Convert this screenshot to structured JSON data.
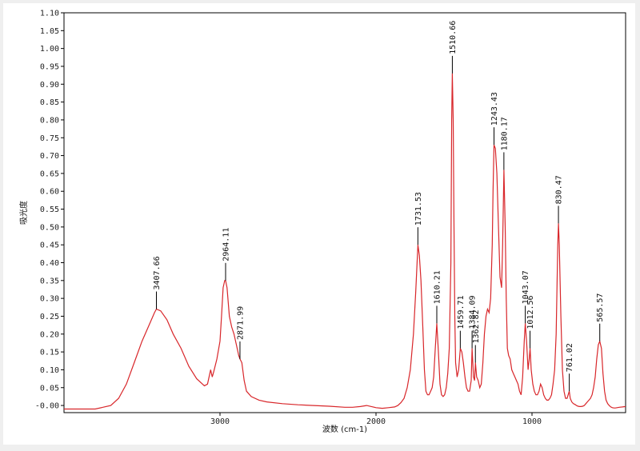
{
  "colors": {
    "spectrum": "#d8262a",
    "axis": "#000000",
    "marker": "#000000",
    "background": "#ffffff"
  },
  "chart_data": {
    "type": "line",
    "xlabel": "波数 (cm-1)",
    "ylabel": "吸光度",
    "xlim": [
      4000,
      400
    ],
    "x_reversed": true,
    "ylim": [
      -0.02,
      1.1
    ],
    "grid": false,
    "y_ticks": [
      "-0.00",
      "0.05",
      "0.10",
      "0.15",
      "0.20",
      "0.25",
      "0.30",
      "0.35",
      "0.40",
      "0.45",
      "0.50",
      "0.55",
      "0.60",
      "0.65",
      "0.70",
      "0.75",
      "0.80",
      "0.85",
      "0.90",
      "0.95",
      "1.00",
      "1.05",
      "1.10"
    ],
    "x_ticks": [
      "3000",
      "2000",
      "1000"
    ],
    "peaks": [
      {
        "label": "3407.66",
        "x": 3407.66,
        "y": 0.27
      },
      {
        "label": "2964.11",
        "x": 2964.11,
        "y": 0.35
      },
      {
        "label": "2871.99",
        "x": 2871.99,
        "y": 0.13
      },
      {
        "label": "1731.53",
        "x": 1731.53,
        "y": 0.45
      },
      {
        "label": "1610.21",
        "x": 1610.21,
        "y": 0.23
      },
      {
        "label": "1510.66",
        "x": 1510.66,
        "y": 0.93
      },
      {
        "label": "1459.71",
        "x": 1459.71,
        "y": 0.16
      },
      {
        "label": "1384.09",
        "x": 1384.09,
        "y": 0.16
      },
      {
        "label": "1362.82",
        "x": 1362.82,
        "y": 0.12
      },
      {
        "label": "1243.43",
        "x": 1243.43,
        "y": 0.73
      },
      {
        "label": "1180.17",
        "x": 1180.17,
        "y": 0.66
      },
      {
        "label": "1043.07",
        "x": 1043.07,
        "y": 0.23
      },
      {
        "label": "1012.56",
        "x": 1012.56,
        "y": 0.16
      },
      {
        "label": "830.47",
        "x": 830.47,
        "y": 0.51
      },
      {
        "label": "761.02",
        "x": 761.02,
        "y": 0.04
      },
      {
        "label": "565.57",
        "x": 565.57,
        "y": 0.18
      }
    ],
    "series": [
      {
        "x": [
          4000,
          3800,
          3700,
          3650,
          3600,
          3550,
          3500,
          3450,
          3420,
          3407.66,
          3380,
          3340,
          3300,
          3250,
          3200,
          3150,
          3100,
          3080,
          3060,
          3050,
          3040,
          3020,
          3000,
          2990,
          2980,
          2970,
          2964.11,
          2955,
          2940,
          2925,
          2910,
          2895,
          2880,
          2871.99,
          2860,
          2845,
          2830,
          2800,
          2750,
          2700,
          2600,
          2500,
          2400,
          2300,
          2200,
          2150,
          2100,
          2060,
          2030,
          2000,
          1960,
          1920,
          1880,
          1860,
          1840,
          1820,
          1800,
          1780,
          1760,
          1745,
          1731.53,
          1722,
          1712,
          1700,
          1690,
          1680,
          1670,
          1660,
          1650,
          1640,
          1630,
          1620,
          1610.21,
          1600,
          1590,
          1580,
          1570,
          1560,
          1550,
          1540,
          1530,
          1520,
          1515,
          1510.66,
          1505,
          1500,
          1495,
          1490,
          1480,
          1470,
          1459.71,
          1450,
          1440,
          1430,
          1420,
          1410,
          1400,
          1390,
          1384.09,
          1375,
          1368,
          1362.82,
          1355,
          1345,
          1335,
          1325,
          1315,
          1305,
          1295,
          1285,
          1275,
          1265,
          1255,
          1250,
          1243.43,
          1235,
          1225,
          1215,
          1205,
          1195,
          1188,
          1180.17,
          1172,
          1165,
          1158,
          1150,
          1140,
          1130,
          1120,
          1110,
          1100,
          1090,
          1080,
          1070,
          1060,
          1050,
          1043.07,
          1035,
          1025,
          1018,
          1012.56,
          1005,
          995,
          985,
          975,
          965,
          955,
          945,
          935,
          925,
          915,
          905,
          895,
          885,
          875,
          865,
          855,
          845,
          835,
          830.47,
          825,
          815,
          805,
          795,
          785,
          775,
          768,
          761.02,
          755,
          745,
          735,
          725,
          715,
          705,
          695,
          685,
          675,
          665,
          655,
          645,
          635,
          625,
          615,
          605,
          595,
          585,
          575,
          565.57,
          555,
          545,
          535,
          525,
          515,
          505,
          495,
          485,
          475,
          465,
          455,
          440,
          420,
          400
        ],
        "y": [
          -0.01,
          -0.01,
          0.0,
          0.02,
          0.06,
          0.12,
          0.18,
          0.23,
          0.26,
          0.27,
          0.265,
          0.24,
          0.2,
          0.16,
          0.11,
          0.075,
          0.055,
          0.06,
          0.1,
          0.08,
          0.095,
          0.13,
          0.18,
          0.25,
          0.33,
          0.35,
          0.35,
          0.33,
          0.25,
          0.22,
          0.2,
          0.17,
          0.14,
          0.13,
          0.12,
          0.07,
          0.04,
          0.025,
          0.015,
          0.01,
          0.005,
          0.002,
          0.0,
          -0.002,
          -0.005,
          -0.005,
          -0.003,
          0.0,
          -0.003,
          -0.006,
          -0.008,
          -0.006,
          -0.004,
          0.0,
          0.008,
          0.02,
          0.05,
          0.1,
          0.2,
          0.32,
          0.45,
          0.42,
          0.35,
          0.22,
          0.1,
          0.04,
          0.03,
          0.03,
          0.04,
          0.05,
          0.08,
          0.16,
          0.23,
          0.15,
          0.06,
          0.03,
          0.025,
          0.03,
          0.05,
          0.09,
          0.16,
          0.4,
          0.8,
          0.93,
          0.8,
          0.5,
          0.25,
          0.12,
          0.08,
          0.1,
          0.16,
          0.15,
          0.12,
          0.08,
          0.05,
          0.04,
          0.04,
          0.07,
          0.16,
          0.08,
          0.07,
          0.12,
          0.08,
          0.07,
          0.05,
          0.06,
          0.12,
          0.2,
          0.25,
          0.27,
          0.26,
          0.3,
          0.45,
          0.6,
          0.73,
          0.72,
          0.65,
          0.5,
          0.36,
          0.33,
          0.45,
          0.66,
          0.5,
          0.3,
          0.16,
          0.14,
          0.13,
          0.1,
          0.09,
          0.08,
          0.07,
          0.06,
          0.04,
          0.03,
          0.08,
          0.18,
          0.23,
          0.18,
          0.1,
          0.13,
          0.16,
          0.1,
          0.06,
          0.04,
          0.03,
          0.03,
          0.04,
          0.06,
          0.05,
          0.03,
          0.02,
          0.015,
          0.015,
          0.02,
          0.03,
          0.06,
          0.1,
          0.2,
          0.45,
          0.51,
          0.45,
          0.25,
          0.1,
          0.04,
          0.02,
          0.02,
          0.03,
          0.04,
          0.02,
          0.01,
          0.005,
          0.003,
          0.0,
          -0.002,
          -0.003,
          -0.003,
          -0.002,
          0.0,
          0.005,
          0.01,
          0.015,
          0.02,
          0.03,
          0.05,
          0.08,
          0.13,
          0.17,
          0.18,
          0.16,
          0.09,
          0.04,
          0.015,
          0.005,
          0.0,
          -0.004,
          -0.006,
          -0.007,
          -0.007,
          -0.006,
          -0.005,
          -0.004,
          -0.003
        ]
      }
    ]
  }
}
